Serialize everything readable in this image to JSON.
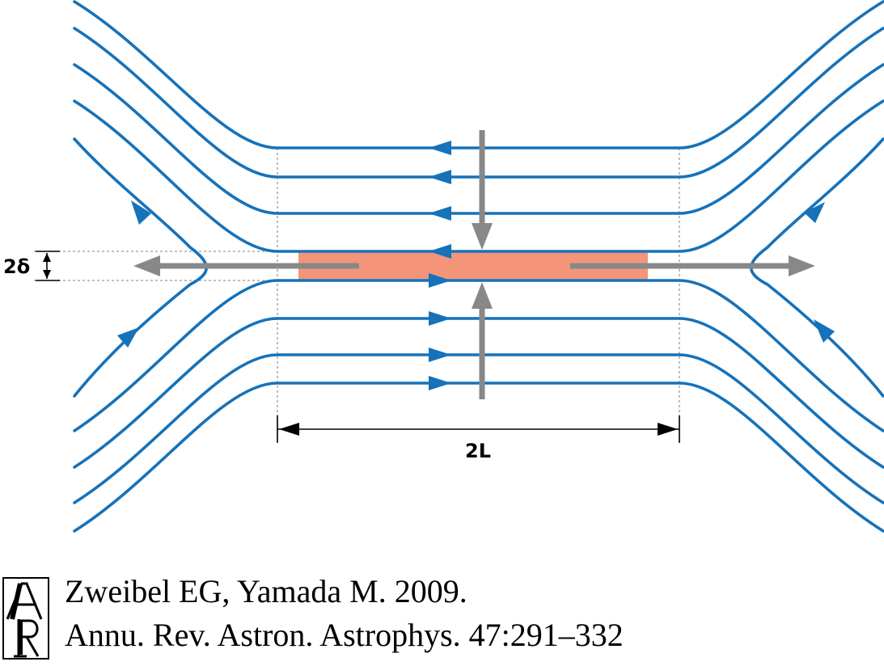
{
  "diagram": {
    "label_width": "2δ",
    "label_length": "2L",
    "colors": {
      "field_line": "#1672b9",
      "flow_arrow": "#888888",
      "diffusion_region": "#f4957a"
    }
  },
  "credit": {
    "logo_icon": "annual-reviews-logo-icon",
    "line1": "Zweibel EG, Yamada M. 2009.",
    "line2": "Annu. Rev. Astron. Astrophys. 47:291–332"
  }
}
